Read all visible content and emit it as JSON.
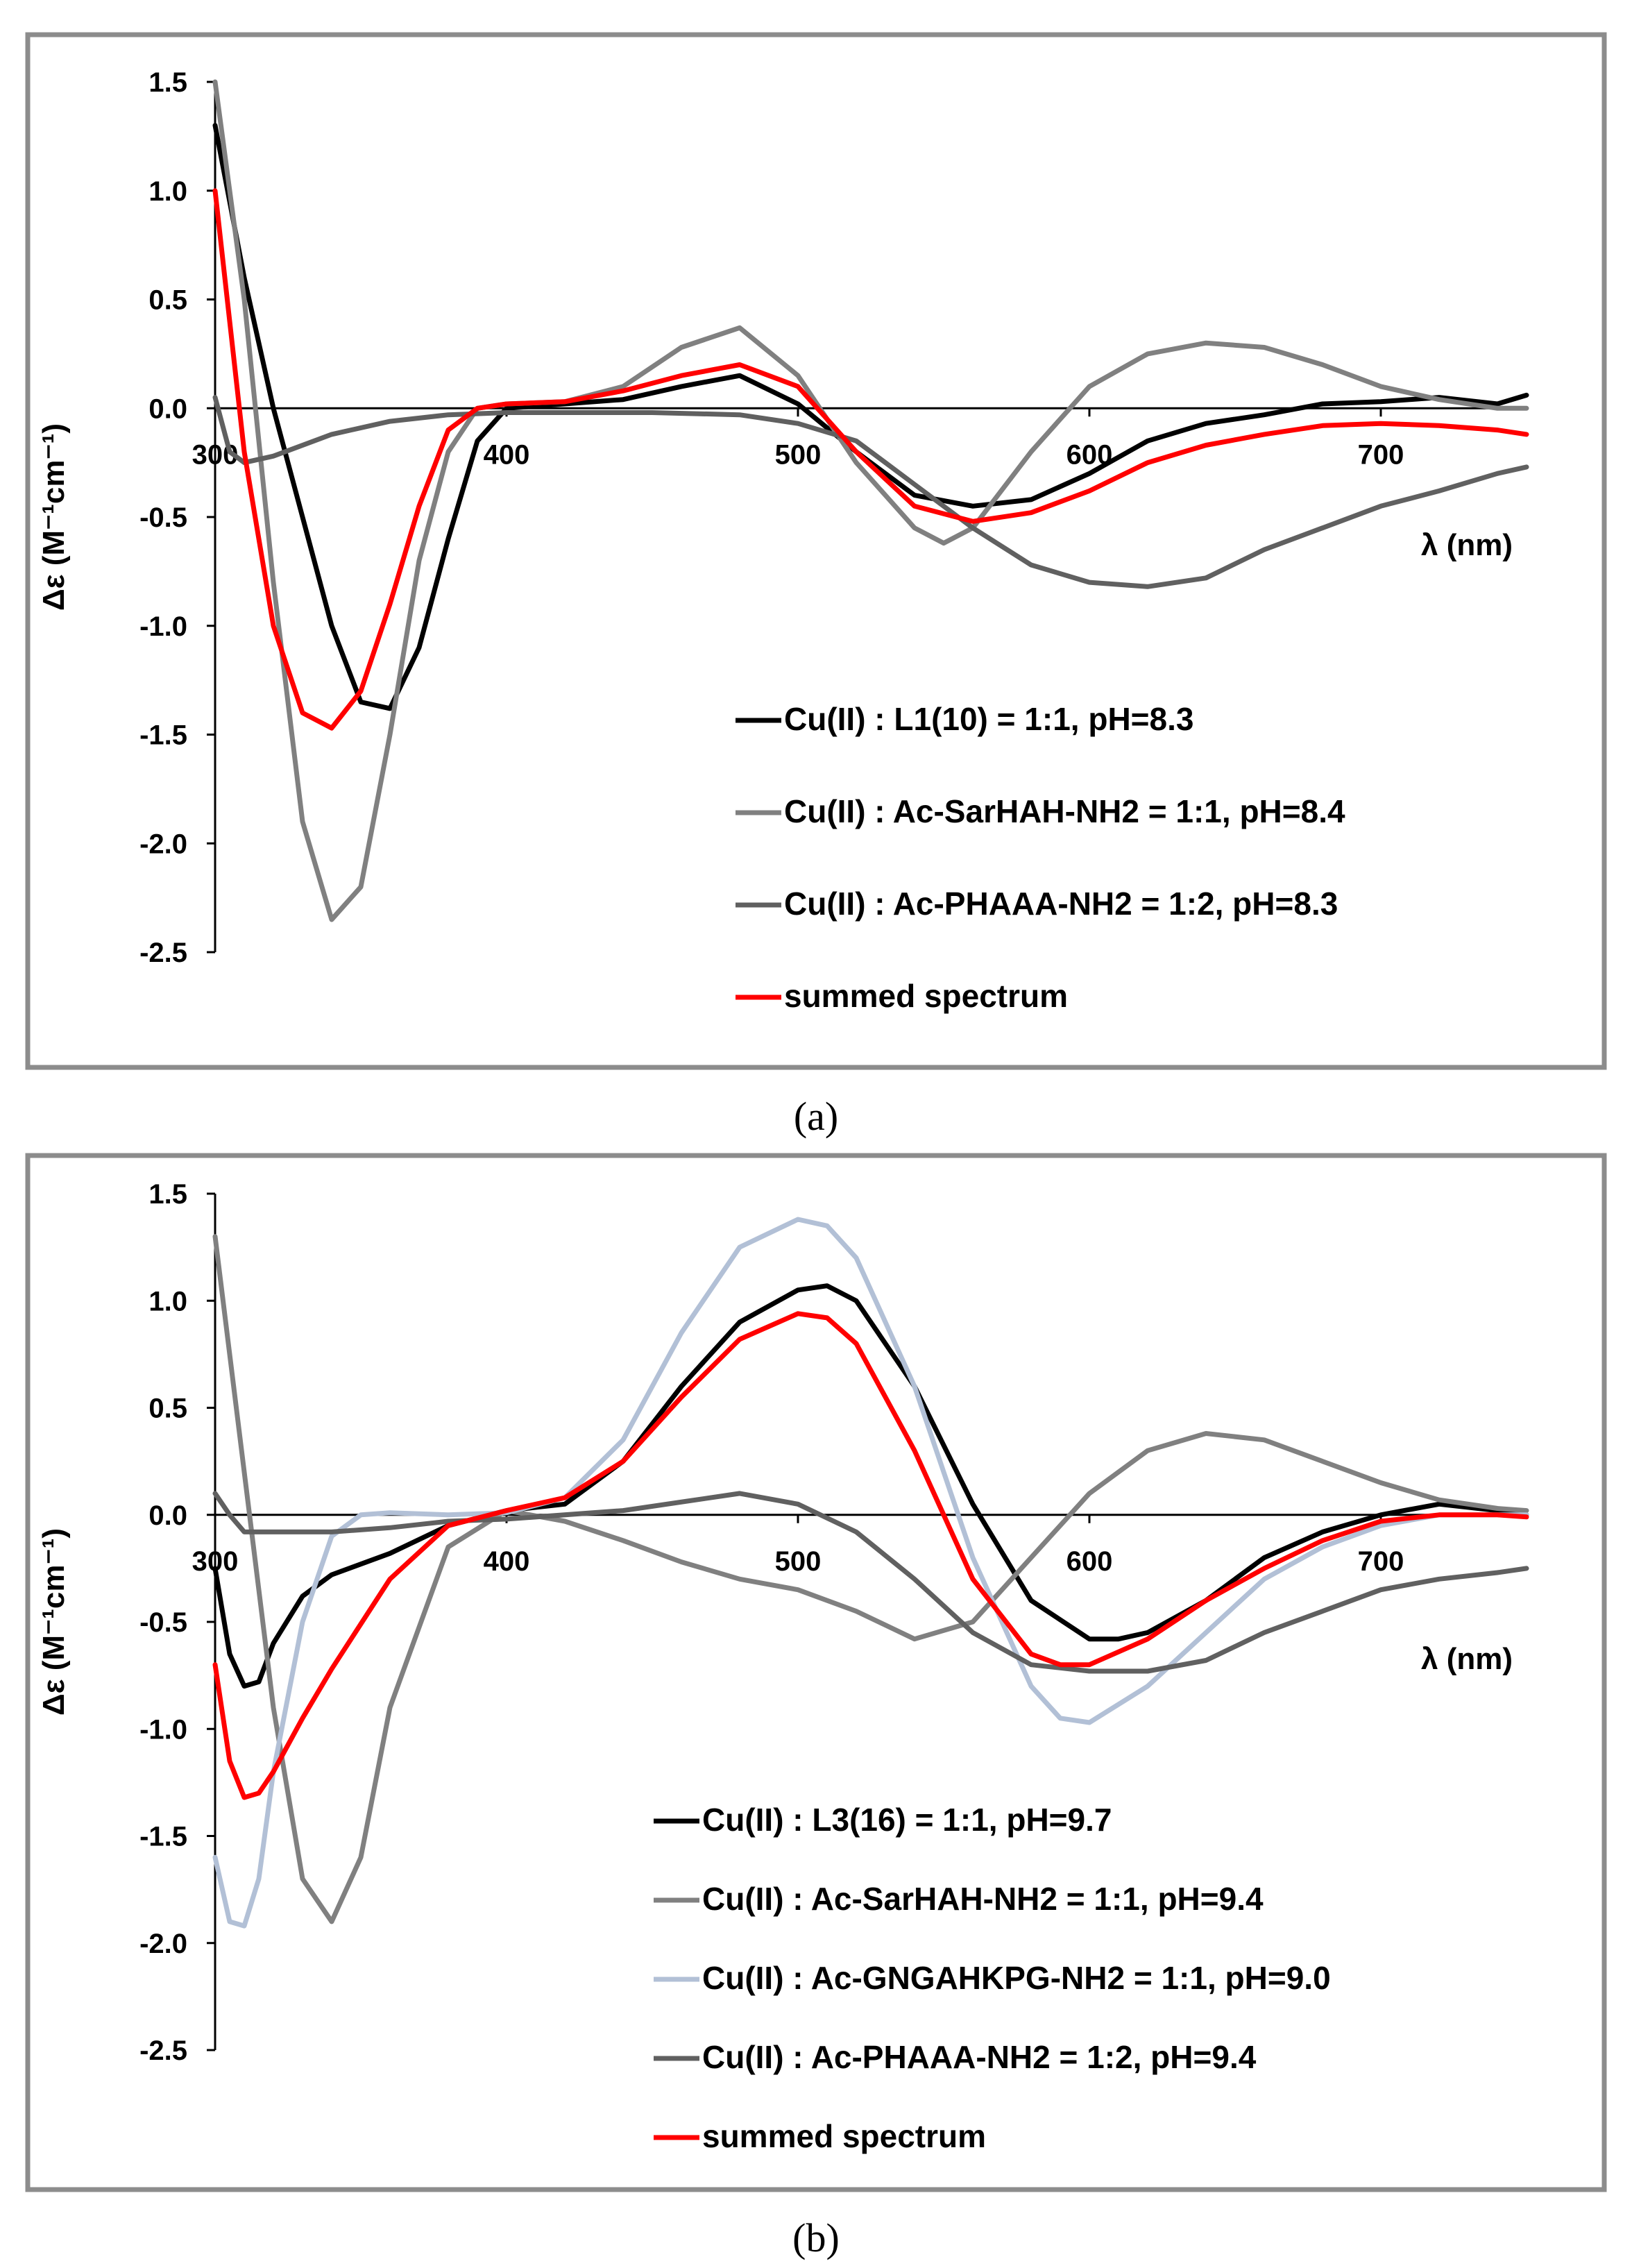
{
  "colors": {
    "black": "#000000",
    "gray": "#808080",
    "dark_gray": "#606060",
    "light_blue": "#b2c0d6",
    "red": "#ff0000"
  },
  "chart_data": [
    {
      "type": "line",
      "caption": "(a)",
      "xlabel": "λ (nm)",
      "ylabel": "Δε (M⁻¹cm⁻¹)",
      "xlim": [
        300,
        750
      ],
      "ylim": [
        -2.5,
        1.5
      ],
      "x_ticks": [
        "300",
        "400",
        "500",
        "600",
        "700"
      ],
      "y_ticks": [
        "1.5",
        "1.0",
        "0.5",
        "0.0",
        "-0.5",
        "-1.0",
        "-1.5",
        "-2.0",
        "-2.5"
      ],
      "series": [
        {
          "name": "Cu(II) : L1(10) = 1:1, pH=8.3",
          "color": "#000000",
          "x": [
            300,
            310,
            320,
            330,
            340,
            350,
            360,
            370,
            380,
            390,
            400,
            420,
            440,
            460,
            480,
            500,
            520,
            540,
            560,
            580,
            600,
            620,
            640,
            660,
            680,
            700,
            720,
            740,
            750
          ],
          "y": [
            1.3,
            0.6,
            0.0,
            -0.5,
            -1.0,
            -1.35,
            -1.38,
            -1.1,
            -0.6,
            -0.15,
            0.0,
            0.02,
            0.04,
            0.1,
            0.15,
            0.02,
            -0.2,
            -0.4,
            -0.45,
            -0.42,
            -0.3,
            -0.15,
            -0.07,
            -0.03,
            0.02,
            0.03,
            0.05,
            0.02,
            0.06
          ]
        },
        {
          "name": "Cu(II) : Ac-SarHAH-NH2 = 1:1, pH=8.4",
          "color": "#808080",
          "x": [
            300,
            310,
            320,
            330,
            340,
            350,
            360,
            370,
            380,
            390,
            400,
            420,
            440,
            460,
            480,
            500,
            520,
            540,
            550,
            560,
            580,
            600,
            620,
            640,
            660,
            680,
            700,
            720,
            740,
            750
          ],
          "y": [
            1.5,
            0.5,
            -0.8,
            -1.9,
            -2.35,
            -2.2,
            -1.5,
            -0.7,
            -0.2,
            0.0,
            0.02,
            0.03,
            0.1,
            0.28,
            0.37,
            0.15,
            -0.25,
            -0.55,
            -0.62,
            -0.55,
            -0.2,
            0.1,
            0.25,
            0.3,
            0.28,
            0.2,
            0.1,
            0.04,
            0.0,
            0.0
          ]
        },
        {
          "name": "Cu(II) : Ac-PHAAA-NH2 = 1:2, pH=8.3",
          "color": "#606060",
          "x": [
            300,
            305,
            310,
            320,
            340,
            360,
            380,
            400,
            450,
            480,
            500,
            520,
            540,
            560,
            580,
            600,
            620,
            640,
            660,
            680,
            700,
            720,
            740,
            750
          ],
          "y": [
            0.05,
            -0.2,
            -0.25,
            -0.22,
            -0.12,
            -0.06,
            -0.03,
            -0.02,
            -0.02,
            -0.03,
            -0.07,
            -0.15,
            -0.35,
            -0.55,
            -0.72,
            -0.8,
            -0.82,
            -0.78,
            -0.65,
            -0.55,
            -0.45,
            -0.38,
            -0.3,
            -0.27
          ]
        },
        {
          "name": "summed spectrum",
          "color": "#ff0000",
          "x": [
            300,
            310,
            320,
            330,
            340,
            350,
            360,
            370,
            380,
            390,
            400,
            420,
            440,
            460,
            480,
            500,
            520,
            540,
            560,
            580,
            600,
            620,
            640,
            660,
            680,
            700,
            720,
            740,
            750
          ],
          "y": [
            1.0,
            -0.2,
            -1.0,
            -1.4,
            -1.47,
            -1.3,
            -0.9,
            -0.45,
            -0.1,
            0.0,
            0.02,
            0.03,
            0.08,
            0.15,
            0.2,
            0.1,
            -0.2,
            -0.45,
            -0.52,
            -0.48,
            -0.38,
            -0.25,
            -0.17,
            -0.12,
            -0.08,
            -0.07,
            -0.08,
            -0.1,
            -0.12
          ]
        }
      ]
    },
    {
      "type": "line",
      "caption": "(b)",
      "xlabel": "λ (nm)",
      "ylabel": "Δε (M⁻¹cm⁻¹)",
      "xlim": [
        300,
        750
      ],
      "ylim": [
        -2.5,
        1.5
      ],
      "x_ticks": [
        "300",
        "400",
        "500",
        "600",
        "700"
      ],
      "y_ticks": [
        "1.5",
        "1.0",
        "0.5",
        "0.0",
        "-0.5",
        "-1.0",
        "-1.5",
        "-2.0",
        "-2.5"
      ],
      "series": [
        {
          "name": "Cu(II) : L3(16) = 1:1, pH=9.7",
          "color": "#000000",
          "x": [
            300,
            305,
            310,
            315,
            320,
            330,
            340,
            360,
            380,
            400,
            420,
            440,
            460,
            480,
            500,
            510,
            520,
            540,
            560,
            580,
            600,
            610,
            620,
            640,
            660,
            680,
            700,
            720,
            740,
            750
          ],
          "y": [
            -0.25,
            -0.65,
            -0.8,
            -0.78,
            -0.6,
            -0.38,
            -0.28,
            -0.18,
            -0.05,
            0.02,
            0.05,
            0.25,
            0.6,
            0.9,
            1.05,
            1.07,
            1.0,
            0.6,
            0.05,
            -0.4,
            -0.58,
            -0.58,
            -0.55,
            -0.4,
            -0.2,
            -0.08,
            0.0,
            0.05,
            0.02,
            0.0
          ]
        },
        {
          "name": "Cu(II) : Ac-SarHAH-NH2 = 1:1, pH=9.4",
          "color": "#808080",
          "x": [
            300,
            310,
            320,
            330,
            340,
            350,
            360,
            380,
            400,
            420,
            440,
            460,
            480,
            500,
            520,
            540,
            560,
            580,
            600,
            620,
            640,
            660,
            680,
            700,
            720,
            740,
            750
          ],
          "y": [
            1.3,
            0.2,
            -0.9,
            -1.7,
            -1.9,
            -1.6,
            -0.9,
            -0.15,
            0.02,
            -0.03,
            -0.12,
            -0.22,
            -0.3,
            -0.35,
            -0.45,
            -0.58,
            -0.5,
            -0.2,
            0.1,
            0.3,
            0.38,
            0.35,
            0.25,
            0.15,
            0.07,
            0.03,
            0.02
          ]
        },
        {
          "name": "Cu(II) : Ac-GNGAHKPG-NH2 = 1:1, pH=9.0",
          "color": "#b2c0d6",
          "x": [
            300,
            305,
            310,
            315,
            320,
            330,
            340,
            350,
            360,
            380,
            400,
            420,
            440,
            460,
            480,
            500,
            510,
            520,
            540,
            560,
            580,
            590,
            600,
            620,
            640,
            660,
            680,
            700,
            720,
            740,
            750
          ],
          "y": [
            -1.6,
            -1.9,
            -1.92,
            -1.7,
            -1.2,
            -0.5,
            -0.1,
            0.0,
            0.01,
            0.0,
            0.01,
            0.08,
            0.35,
            0.85,
            1.25,
            1.38,
            1.35,
            1.2,
            0.6,
            -0.2,
            -0.8,
            -0.95,
            -0.97,
            -0.8,
            -0.55,
            -0.3,
            -0.15,
            -0.05,
            0.0,
            0.0,
            0.0
          ]
        },
        {
          "name": "Cu(II) : Ac-PHAAA-NH2 = 1:2, pH=9.4",
          "color": "#606060",
          "x": [
            300,
            305,
            310,
            320,
            340,
            360,
            380,
            400,
            440,
            480,
            500,
            520,
            540,
            560,
            580,
            600,
            620,
            640,
            660,
            680,
            700,
            720,
            740,
            750
          ],
          "y": [
            0.1,
            0.0,
            -0.08,
            -0.08,
            -0.08,
            -0.06,
            -0.03,
            -0.02,
            0.02,
            0.1,
            0.05,
            -0.08,
            -0.3,
            -0.55,
            -0.7,
            -0.73,
            -0.73,
            -0.68,
            -0.55,
            -0.45,
            -0.35,
            -0.3,
            -0.27,
            -0.25
          ]
        },
        {
          "name": "summed spectrum",
          "color": "#ff0000",
          "x": [
            300,
            305,
            310,
            315,
            320,
            330,
            340,
            360,
            380,
            400,
            420,
            440,
            460,
            480,
            500,
            510,
            520,
            540,
            560,
            580,
            590,
            600,
            620,
            640,
            660,
            680,
            700,
            720,
            740,
            750
          ],
          "y": [
            -0.7,
            -1.15,
            -1.32,
            -1.3,
            -1.2,
            -0.95,
            -0.72,
            -0.3,
            -0.05,
            0.02,
            0.08,
            0.25,
            0.55,
            0.82,
            0.94,
            0.92,
            0.8,
            0.3,
            -0.3,
            -0.65,
            -0.7,
            -0.7,
            -0.58,
            -0.4,
            -0.25,
            -0.12,
            -0.03,
            0.0,
            0.0,
            -0.01
          ]
        }
      ]
    }
  ]
}
